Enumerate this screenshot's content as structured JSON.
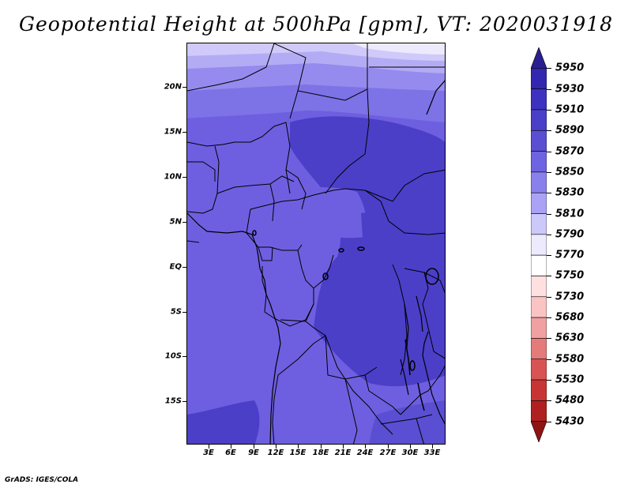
{
  "title": "Geopotential Height at 500hPa [gpm], VT: 2020031918",
  "footer": "GrADS: IGES/COLA",
  "map": {
    "lat_labels": [
      "20N",
      "15N",
      "10N",
      "5N",
      "EQ",
      "5S",
      "10S",
      "15S"
    ],
    "lon_labels": [
      "3E",
      "6E",
      "9E",
      "12E",
      "15E",
      "18E",
      "21E",
      "24E",
      "27E",
      "30E",
      "33E"
    ]
  },
  "colorbar": {
    "levels": [
      "5950",
      "5930",
      "5910",
      "5890",
      "5870",
      "5850",
      "5830",
      "5810",
      "5790",
      "5770",
      "5750",
      "5730",
      "5680",
      "5630",
      "5580",
      "5530",
      "5480",
      "5430"
    ],
    "colors": [
      "#2a1f8f",
      "#3326b0",
      "#3d32c0",
      "#4a3fc8",
      "#5a4fd2",
      "#6e63e0",
      "#8a80ec",
      "#aaa2f4",
      "#cdc8fa",
      "#eceafc",
      "#ffffff",
      "#ffe0e0",
      "#fbc4c4",
      "#f0a0a0",
      "#e47a7a",
      "#d85454",
      "#c83434",
      "#b02020",
      "#8e1414"
    ]
  }
}
